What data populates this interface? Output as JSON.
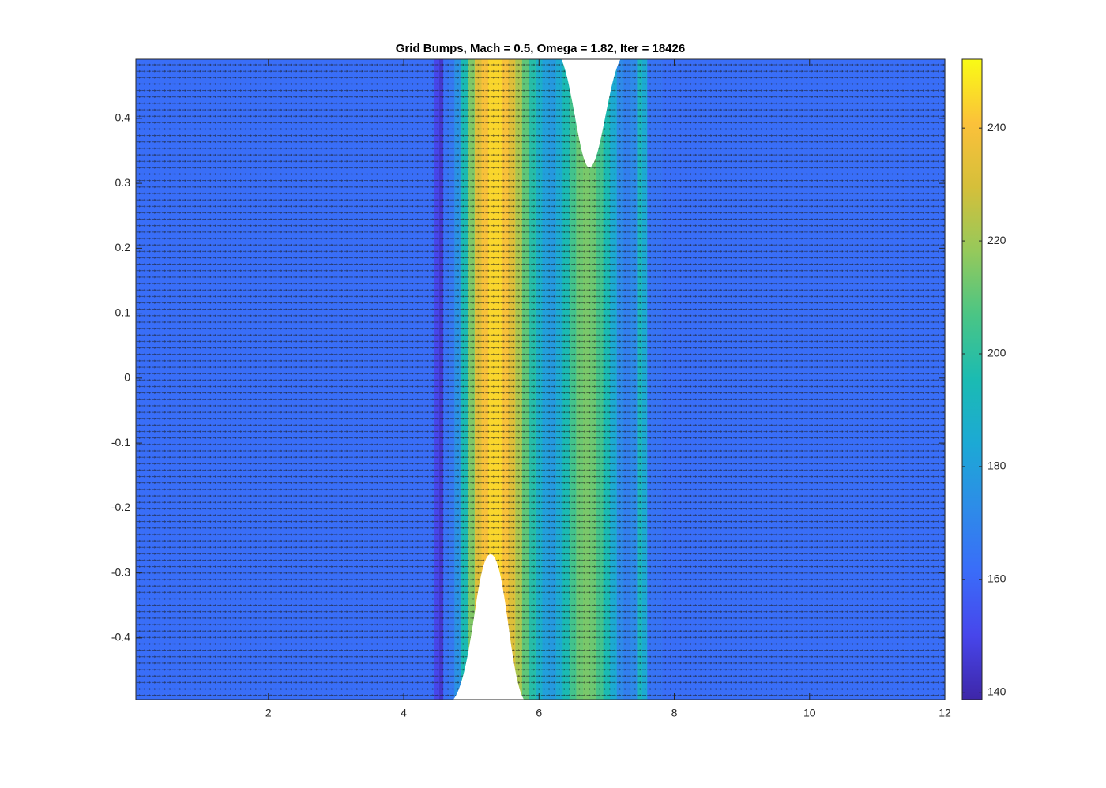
{
  "chart_data": {
    "type": "field",
    "title": "Grid Bumps, Mach = 0.5, Omega = 1.82, Iter = 18426",
    "colormap": "parula",
    "x": [
      0.04,
      4.4,
      4.5,
      4.55,
      4.62,
      4.7,
      4.8,
      4.9,
      5.0,
      5.1,
      5.2,
      5.3,
      5.4,
      5.5,
      5.6,
      5.7,
      5.8,
      5.9,
      6.0,
      6.1,
      6.2,
      6.3,
      6.4,
      6.5,
      6.6,
      6.7,
      6.8,
      6.9,
      7.0,
      7.1,
      7.2,
      7.3,
      7.4,
      7.5,
      7.55,
      7.65,
      8,
      12
    ],
    "values": [
      162,
      162,
      150,
      145,
      163,
      166,
      175,
      195,
      215,
      232,
      240,
      245,
      245,
      240,
      232,
      222,
      210,
      198,
      188,
      180,
      178,
      185,
      195,
      205,
      212,
      214,
      212,
      205,
      195,
      185,
      172,
      168,
      172,
      192,
      185,
      164,
      162,
      162
    ],
    "xlim": [
      0.04,
      12
    ],
    "xticks": [
      2,
      4,
      6,
      8,
      10,
      12
    ],
    "ylim": [
      -0.495,
      0.491
    ],
    "yticks": [
      -0.4,
      -0.3,
      -0.2,
      -0.1,
      0,
      0.1,
      0.2,
      0.3,
      0.4
    ],
    "clim": [
      138.7,
      252.2
    ],
    "cticks": [
      140,
      160,
      180,
      200,
      220,
      240
    ]
  }
}
